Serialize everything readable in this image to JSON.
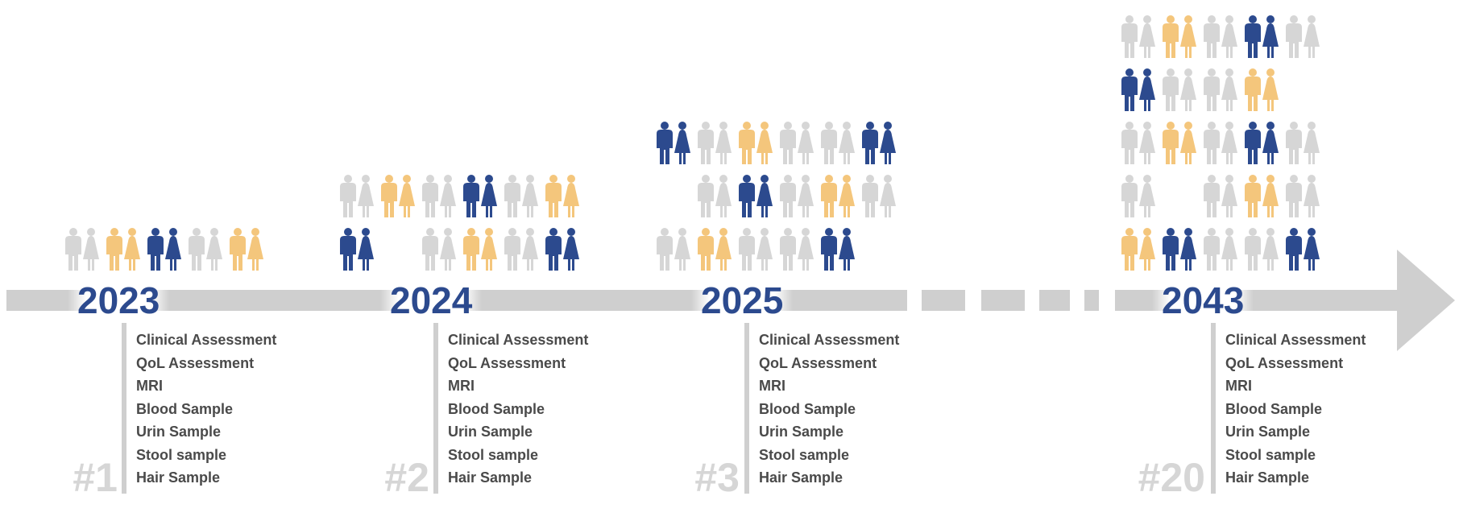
{
  "colors": {
    "navy": "#2c4a8e",
    "gold": "#f4c67c",
    "gray": "#d6d6d6",
    "axis": "#cfcfcf",
    "text": "#4a4a4a"
  },
  "milestones": [
    {
      "year": "2023",
      "visit": "#1",
      "items": [
        "Clinical Assessment",
        "QoL Assessment",
        "MRI",
        "Blood Sample",
        "Urin Sample",
        "Stool sample",
        "Hair Sample"
      ],
      "rows": [
        [
          "gray",
          "gold",
          "navy",
          "gray",
          "gold"
        ]
      ]
    },
    {
      "year": "2024",
      "visit": "#2",
      "items": [
        "Clinical Assessment",
        "QoL Assessment",
        "MRI",
        "Blood Sample",
        "Urin Sample",
        "Stool sample",
        "Hair Sample"
      ],
      "rows": [
        [
          "gray",
          "gold",
          "gray",
          "navy",
          "gray",
          "gold"
        ],
        [
          "navy",
          "",
          "gray",
          "gold",
          "gray",
          "navy"
        ]
      ]
    },
    {
      "year": "2025",
      "visit": "#3",
      "items": [
        "Clinical Assessment",
        "QoL Assessment",
        "MRI",
        "Blood Sample",
        "Urin Sample",
        "Stool sample",
        "Hair Sample"
      ],
      "rows": [
        [
          "navy",
          "gray",
          "gold",
          "gray",
          "gray",
          "navy"
        ],
        [
          "",
          "gray",
          "navy",
          "gray",
          "gold",
          "gray"
        ],
        [
          "gray",
          "gold",
          "gray",
          "gray",
          "navy",
          ""
        ]
      ]
    },
    {
      "year": "2043",
      "visit": "#20",
      "items": [
        "Clinical Assessment",
        "QoL Assessment",
        "MRI",
        "Blood Sample",
        "Urin Sample",
        "Stool sample",
        "Hair Sample"
      ],
      "rows": [
        [
          "gray",
          "gold",
          "gray",
          "navy",
          "gray"
        ],
        [
          "navy",
          "gray",
          "gray",
          "gold",
          ""
        ],
        [
          "gray",
          "gold",
          "gray",
          "navy",
          "gray"
        ],
        [
          "gray",
          "",
          "gray",
          "gold",
          "gray"
        ],
        [
          "gold",
          "navy",
          "gray",
          "gray",
          "navy"
        ]
      ]
    }
  ]
}
